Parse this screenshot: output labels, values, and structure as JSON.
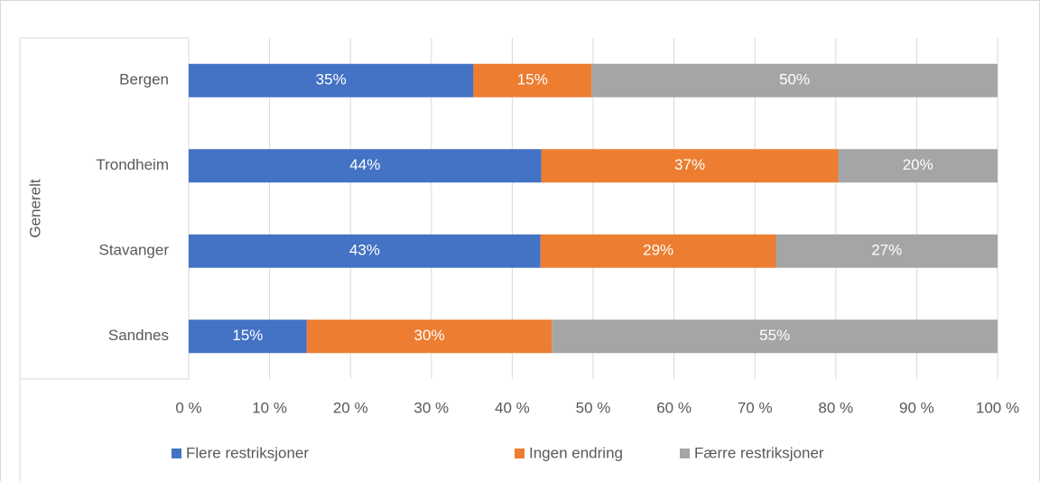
{
  "chart_data": {
    "type": "stacked_barh",
    "group_label": "Generelt",
    "categories": [
      "Bergen",
      "Trondheim",
      "Stavanger",
      "Sandnes"
    ],
    "series": [
      {
        "name": "Flere restriksjoner",
        "color": "#4472c4",
        "values": [
          35.2,
          43.6,
          43.5,
          14.6
        ],
        "value_labels": [
          "35%",
          "44%",
          "43%",
          "15%"
        ]
      },
      {
        "name": "Ingen endring",
        "color": "#ed7d31",
        "values": [
          14.6,
          36.7,
          29.1,
          30.3
        ],
        "value_labels": [
          "15%",
          "37%",
          "29%",
          "30%"
        ]
      },
      {
        "name": "Færre restriksjoner",
        "color": "#a5a5a5",
        "values": [
          50.2,
          19.7,
          27.4,
          55.1
        ],
        "value_labels": [
          "50%",
          "20%",
          "27%",
          "55%"
        ]
      }
    ],
    "xlim": [
      0,
      100
    ],
    "xticks": [
      {
        "value": 0,
        "label": "0 %"
      },
      {
        "value": 10,
        "label": "10 %"
      },
      {
        "value": 20,
        "label": "20 %"
      },
      {
        "value": 30,
        "label": "30 %"
      },
      {
        "value": 40,
        "label": "40 %"
      },
      {
        "value": 50,
        "label": "50 %"
      },
      {
        "value": 60,
        "label": "60 %"
      },
      {
        "value": 70,
        "label": "70 %"
      },
      {
        "value": 80,
        "label": "80 %"
      },
      {
        "value": 90,
        "label": "90 %"
      },
      {
        "value": 100,
        "label": "100 %"
      }
    ],
    "grid": true,
    "legend": "bottom"
  }
}
